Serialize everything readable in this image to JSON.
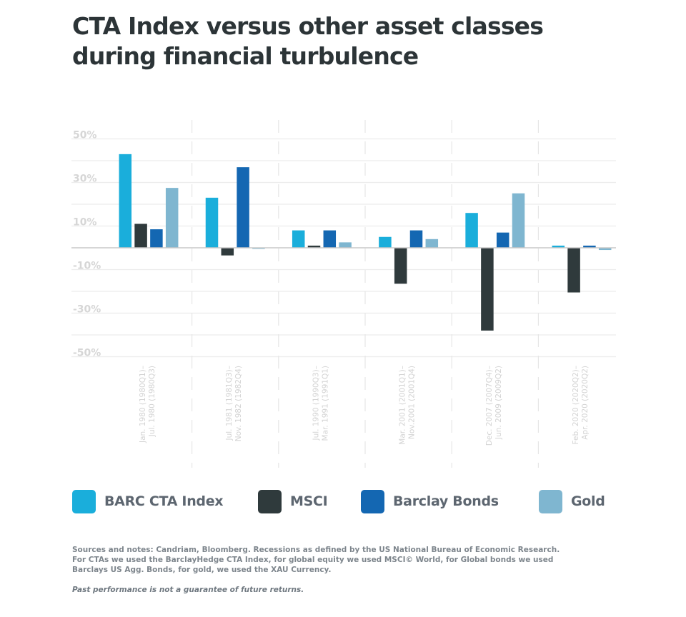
{
  "chart_data": {
    "type": "bar",
    "title": "CTA Index versus other asset classes during financial turbulence",
    "xlabel": "",
    "ylabel": "",
    "ylim": [
      -50,
      50
    ],
    "yticks": [
      50,
      30,
      10,
      -10,
      -30,
      -50
    ],
    "ytick_labels": [
      "50%",
      "30%",
      "10%",
      "-10%",
      "-30%",
      "-50%"
    ],
    "grid": true,
    "grid_step": 10,
    "legend_position": "bottom",
    "categories": [
      [
        "Jan. 1980 (1980Q1)–",
        "Jul. 1980 (1980Q3)"
      ],
      [
        "Jul. 1981 (1981Q3)–",
        "Nov. 1982 (1982Q4)"
      ],
      [
        "Jul. 1990 (1990Q3)–",
        "Mar. 1991 (1991Q1)"
      ],
      [
        "Mar. 2001 (2001Q1)–",
        "Nov.2001 (2001Q4)"
      ],
      [
        "Dec. 2007 (2007Q4)–",
        "Jun. 2009 (2009Q2)"
      ],
      [
        "Feb. 2020 (2020Q2)–",
        "Apr. 2020 (2020Q2)"
      ]
    ],
    "series": [
      {
        "name": "BARC CTA Index",
        "color": "#1aaedb",
        "values": [
          43,
          23,
          8,
          5,
          16,
          1
        ]
      },
      {
        "name": "MSCI",
        "color": "#2f3a3c",
        "values": [
          11,
          -3.5,
          1,
          -16.5,
          -38,
          -20.5
        ]
      },
      {
        "name": "Barclay Bonds",
        "color": "#1467b2",
        "values": [
          8.5,
          37,
          8,
          8,
          7,
          1
        ]
      },
      {
        "name": "Gold",
        "color": "#7fb6d0",
        "values": [
          27.5,
          -0.5,
          2.5,
          4,
          25,
          -1
        ]
      }
    ]
  },
  "header": {
    "title_line1": "CTA Index versus other asset classes",
    "title_line2": "during financial turbulence"
  },
  "legend": {
    "items": [
      {
        "label": "BARC CTA Index",
        "color": "#1aaedb"
      },
      {
        "label": "MSCI",
        "color": "#2f3a3c"
      },
      {
        "label": "Barclay Bonds",
        "color": "#1467b2"
      },
      {
        "label": "Gold",
        "color": "#7fb6d0"
      }
    ]
  },
  "footer": {
    "notes_line1": "Sources and notes: Candriam, Bloomberg. Recessions as defined by the US National Bureau of Economic Research.",
    "notes_line2": "For CTAs we used the BarclayHedge CTA Index, for global equity we used MSCI© World, for Global bonds we used",
    "notes_line3": "Barclays US Agg. Bonds, for gold, we used the XAU Currency.",
    "disclaimer": "Past performance is not a guarantee of future returns."
  }
}
